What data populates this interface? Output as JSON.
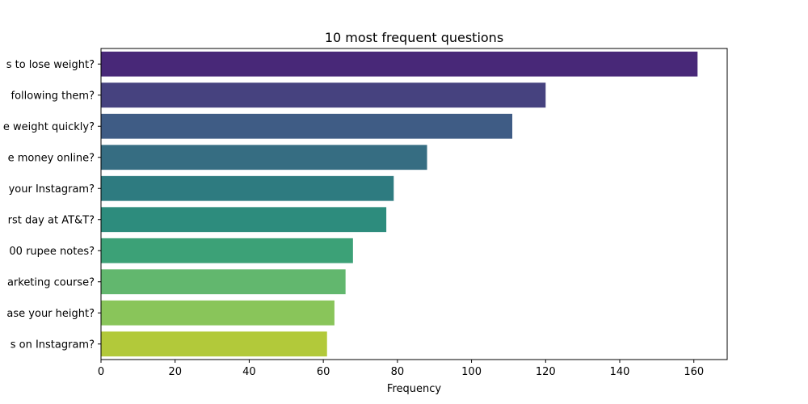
{
  "chart_data": {
    "type": "bar",
    "orientation": "horizontal",
    "title": "10 most frequent questions",
    "xlabel": "Frequency",
    "ylabel": "",
    "xlim": [
      0,
      169
    ],
    "xticks": [
      "0",
      "20",
      "40",
      "60",
      "80",
      "100",
      "120",
      "140",
      "160"
    ],
    "grid": false,
    "categories": [
      "s to lose weight?",
      "following them?",
      "e weight quickly?",
      "e money online?",
      "your Instagram?",
      "rst day at AT&T?",
      "00 rupee notes?",
      "arketing course?",
      "ase your height?",
      "s on Instagram?"
    ],
    "values": [
      161,
      120,
      111,
      88,
      79,
      77,
      68,
      66,
      63,
      61
    ],
    "colors": [
      "#482878",
      "#46427f",
      "#3f5c85",
      "#366d82",
      "#2e7b80",
      "#2d8c7d",
      "#3ca177",
      "#62b76e",
      "#89c55a",
      "#b2c93a"
    ]
  }
}
